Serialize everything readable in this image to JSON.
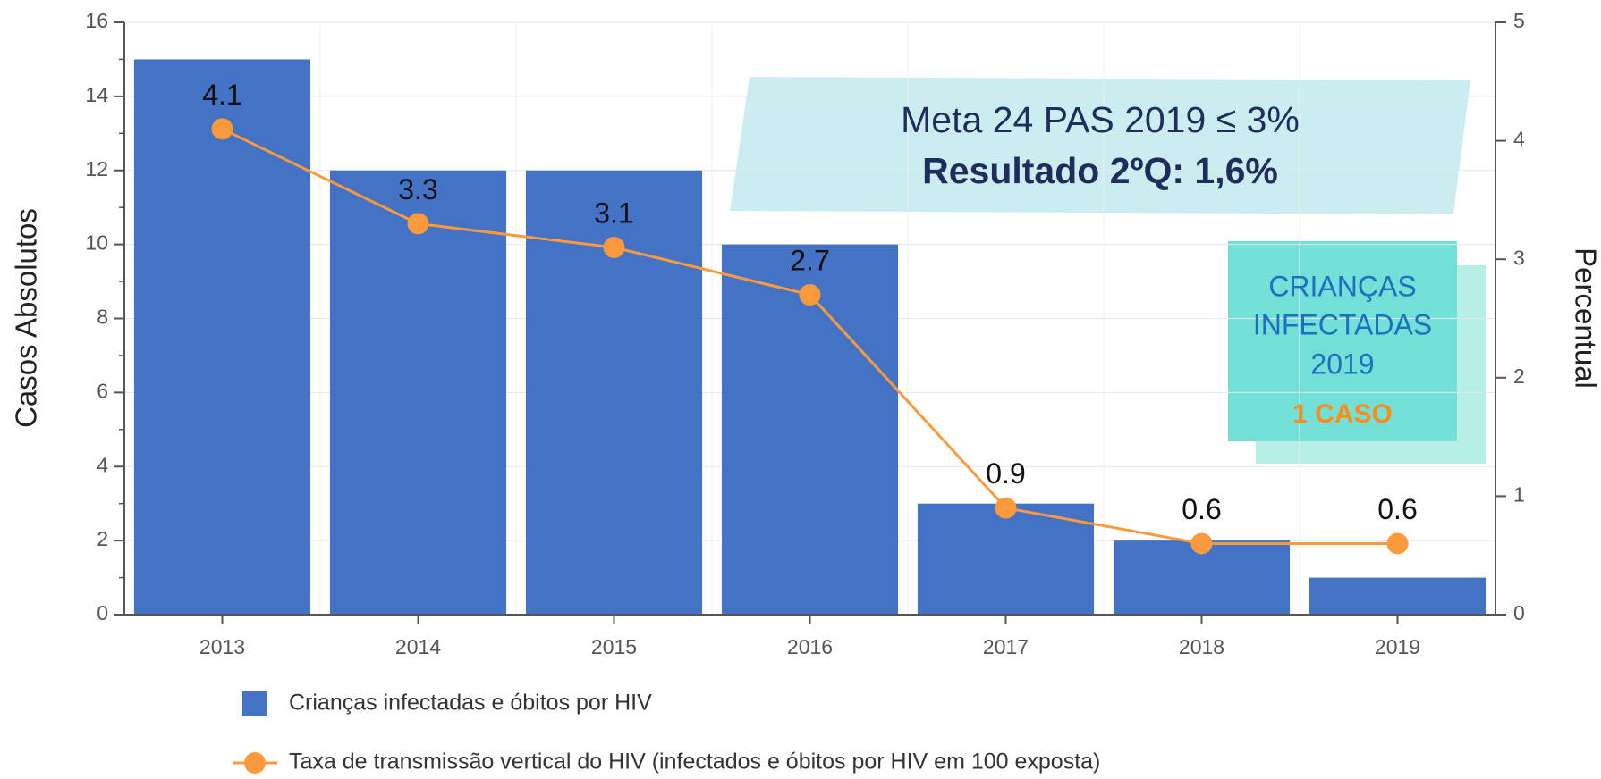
{
  "chart_data": {
    "type": "bar_line",
    "categories": [
      "2013",
      "2014",
      "2015",
      "2016",
      "2017",
      "2018",
      "2019"
    ],
    "series": [
      {
        "name": "Crianças infectadas e óbitos por HIV",
        "type": "bar",
        "color": "#4472c4",
        "values": [
          15,
          12,
          12,
          10,
          3,
          2,
          1
        ]
      },
      {
        "name": "Taxa de transmissão vertical do HIV (infectados e óbitos por HIV em 100 exposta)",
        "type": "line",
        "axis": "y2",
        "color": "#fb9a3c",
        "values": [
          4.1,
          3.3,
          3.1,
          2.7,
          0.9,
          0.6,
          0.6
        ]
      }
    ],
    "y_label": "Casos Absolutos",
    "y2_label": "Percentual",
    "ylim": [
      0,
      16
    ],
    "yticks": [
      0,
      2,
      4,
      6,
      8,
      10,
      12,
      14,
      16
    ],
    "y2lim": [
      0,
      5
    ],
    "y2ticks": [
      0,
      1,
      2,
      3,
      4,
      5
    ],
    "grid": true,
    "annotations": [
      {
        "lines": [
          "Meta 24 PAS 2019  ≤ 3%",
          "Resultado 2ºQ: 1,6%"
        ]
      },
      {
        "lines": [
          "CRIANÇAS",
          "INFECTADAS",
          "2019",
          "1 CASO"
        ]
      }
    ]
  }
}
